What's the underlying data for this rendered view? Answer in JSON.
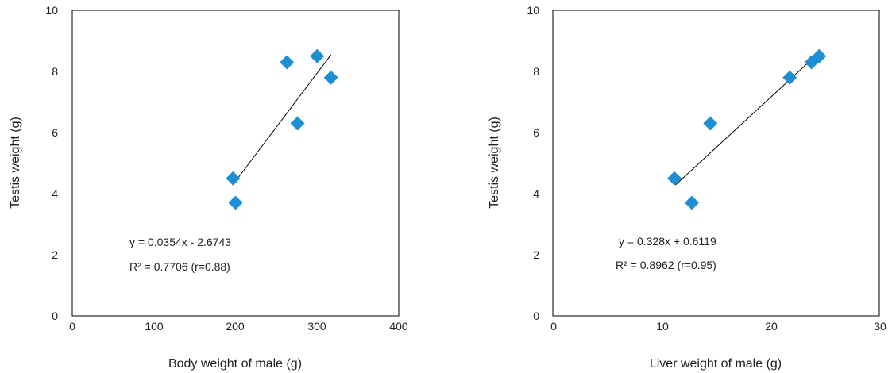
{
  "chart_data": [
    {
      "type": "scatter",
      "title": "",
      "xlabel": "Body weight of male (g)",
      "ylabel": "Testis weight (g)",
      "xlim": [
        0,
        400
      ],
      "ylim": [
        0,
        10
      ],
      "x_ticks": [
        "0",
        "100",
        "200",
        "300",
        "400"
      ],
      "y_ticks": [
        "0",
        "2",
        "4",
        "6",
        "8",
        "10"
      ],
      "grid": false,
      "legend": "none",
      "marker": "diamond",
      "marker_color": "#1f8fd3",
      "points": [
        {
          "x": 197,
          "y": 4.5
        },
        {
          "x": 200,
          "y": 3.7
        },
        {
          "x": 263,
          "y": 8.3
        },
        {
          "x": 276,
          "y": 6.3
        },
        {
          "x": 300,
          "y": 8.5
        },
        {
          "x": 317,
          "y": 7.8
        }
      ],
      "trendline": {
        "slope": 0.0354,
        "intercept": -2.6743,
        "x_range": [
          200,
          317
        ]
      },
      "annotations": [
        "y = 0.0354x - 2.6743",
        "R² = 0.7706 (r=0.88)"
      ]
    },
    {
      "type": "scatter",
      "title": "",
      "xlabel": "Liver weight of male (g)",
      "ylabel": "Testis weight (g)",
      "xlim": [
        0,
        30
      ],
      "ylim": [
        0,
        10
      ],
      "x_ticks": [
        "0",
        "10",
        "20",
        "30"
      ],
      "y_ticks": [
        "0",
        "2",
        "4",
        "6",
        "8",
        "10"
      ],
      "grid": false,
      "legend": "none",
      "marker": "diamond",
      "marker_color": "#1f8fd3",
      "points": [
        {
          "x": 11.1,
          "y": 4.5
        },
        {
          "x": 12.7,
          "y": 3.7
        },
        {
          "x": 14.4,
          "y": 6.3
        },
        {
          "x": 21.7,
          "y": 7.8
        },
        {
          "x": 23.7,
          "y": 8.3
        },
        {
          "x": 24.4,
          "y": 8.5
        }
      ],
      "trendline": {
        "slope": 0.328,
        "intercept": 0.6119,
        "x_range": [
          11.2,
          24.4
        ]
      },
      "annotations": [
        "y = 0.328x + 0.6119",
        "R² = 0.8962 (r=0.95)"
      ]
    }
  ]
}
